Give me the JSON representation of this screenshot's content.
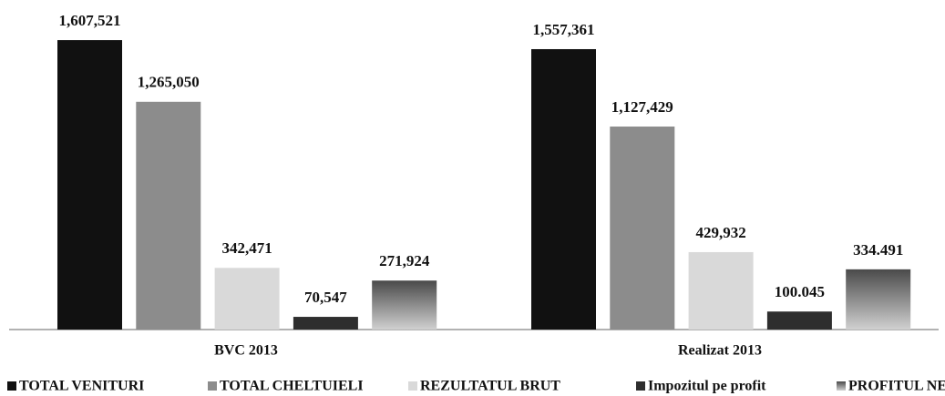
{
  "chart_data": {
    "type": "bar",
    "categories": [
      "BVC 2013",
      "Realizat 2013"
    ],
    "series": [
      {
        "name": "TOTAL VENITURI",
        "color": "#111111",
        "values": [
          1607521,
          1557361
        ],
        "value_labels": [
          "1,607,521",
          "1,557,361"
        ]
      },
      {
        "name": "TOTAL CHELTUIELI",
        "color": "#8c8c8c",
        "values": [
          1265050,
          1127429
        ],
        "value_labels": [
          "1,265,050",
          "1,127,429"
        ]
      },
      {
        "name": "REZULTATUL BRUT",
        "color": "#d9d9d9",
        "values": [
          342471,
          429932
        ],
        "value_labels": [
          "342,471",
          "429,932"
        ]
      },
      {
        "name": "Impozitul pe profit",
        "color": "#2e2e2e",
        "values": [
          70547,
          100045
        ],
        "value_labels": [
          "70,547",
          "100.045"
        ]
      },
      {
        "name": "PROFITUL NET",
        "color": "#4a4a4a",
        "values": [
          271924,
          334491
        ],
        "value_labels": [
          "271,924",
          "334.491"
        ]
      }
    ],
    "ylim": [
      0,
      1800000
    ],
    "legend": "bottom"
  }
}
